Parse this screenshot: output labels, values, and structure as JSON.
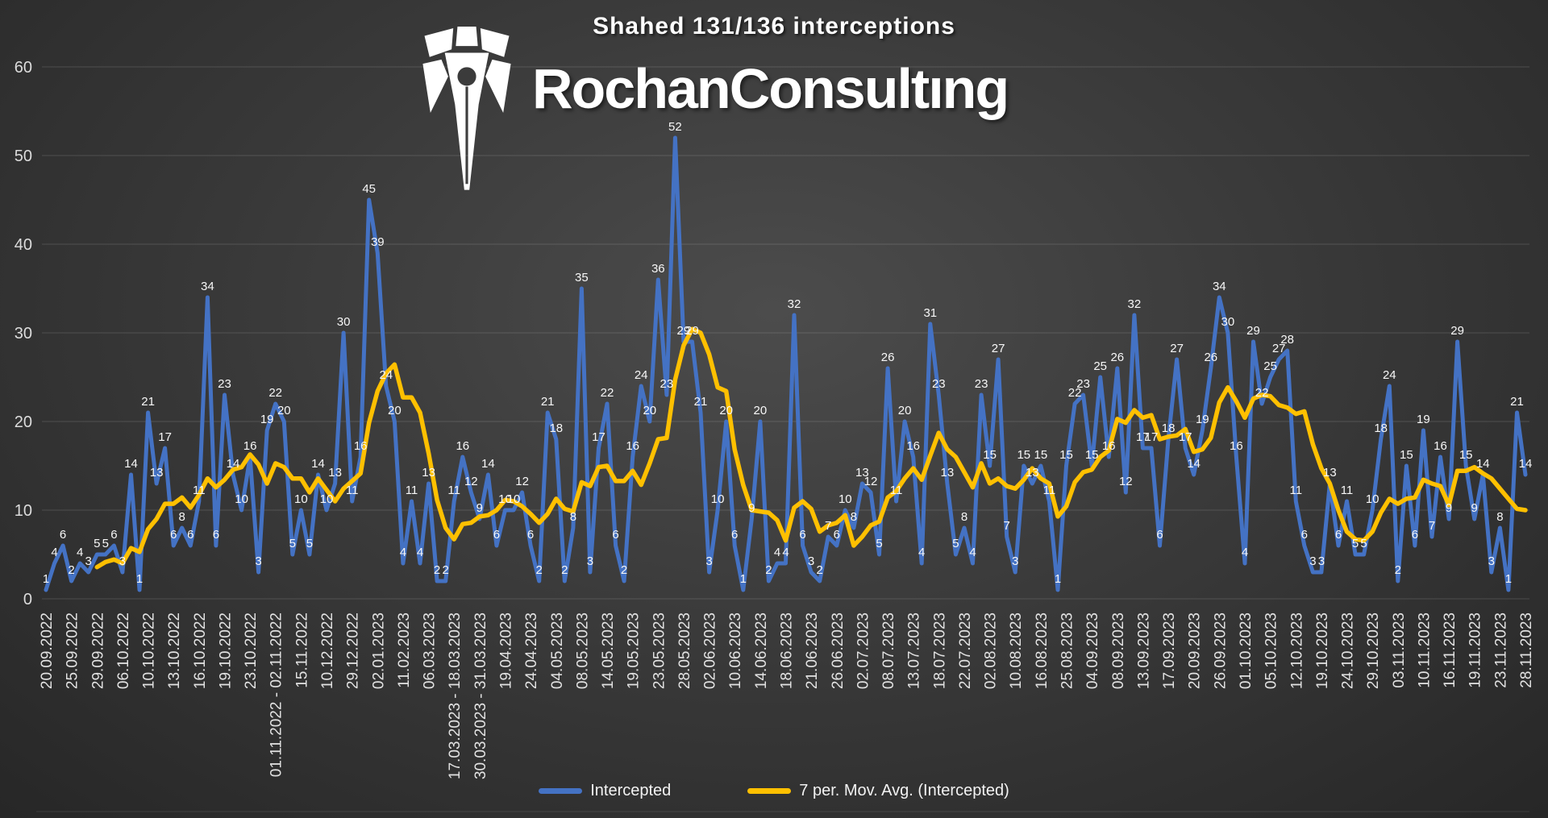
{
  "title": "Shahed 131/136 interceptions",
  "logo": {
    "icon": "pen-nib-icon",
    "brand": "RochanConsultıng"
  },
  "legend": {
    "position": "bottom"
  },
  "chart_data": {
    "type": "line",
    "title": "Shahed 131/136 interceptions",
    "xlabel": "",
    "ylabel": "",
    "ylim": [
      0,
      65
    ],
    "yticks": [
      0,
      10,
      20,
      30,
      40,
      50,
      60
    ],
    "grid": true,
    "legend_position": "bottom",
    "x_label_interval": 3,
    "x_labels": [
      "20.09.2022",
      "25.09.2022",
      "29.09.2022",
      "06.10.2022",
      "10.10.2022",
      "13.10.2022",
      "16.10.2022",
      "19.10.2022",
      "23.10.2022",
      "01.11.2022 - 02.11.2022",
      "15.11.2022",
      "10.12.2022",
      "29.12.2022",
      "02.01.2023",
      "11.02.2023",
      "06.03.2023",
      "17.03.2023 - 18.03.2023",
      "30.03.2023 - 31.03.2023",
      "19.04.2023",
      "24.04.2023",
      "04.05.2023",
      "08.05.2023",
      "14.05.2023",
      "19.05.2023",
      "23.05.2023",
      "28.05.2023",
      "02.06.2023",
      "10.06.2023",
      "14.06.2023",
      "18.06.2023",
      "21.06.2023",
      "26.06.2023",
      "02.07.2023",
      "08.07.2023",
      "13.07.2023",
      "18.07.2023",
      "22.07.2023",
      "02.08.2023",
      "10.08.2023",
      "16.08.2023",
      "25.08.2023",
      "04.09.2023",
      "08.09.2023",
      "13.09.2023",
      "17.09.2023",
      "20.09.2023",
      "26.09.2023",
      "01.10.2023",
      "05.10.2023",
      "12.10.2023",
      "19.10.2023",
      "24.10.2023",
      "29.10.2023",
      "03.11.2023",
      "10.11.2023",
      "16.11.2023",
      "19.11.2023",
      "23.11.2023",
      "28.11.2023"
    ],
    "series": [
      {
        "name": "Intercepted",
        "color": "#4472C4",
        "data_labels": true,
        "values": [
          1,
          4,
          6,
          2,
          4,
          3,
          5,
          5,
          6,
          3,
          14,
          1,
          21,
          13,
          17,
          6,
          8,
          6,
          11,
          34,
          6,
          23,
          14,
          10,
          16,
          3,
          19,
          22,
          20,
          5,
          10,
          5,
          14,
          10,
          13,
          30,
          11,
          16,
          45,
          39,
          24,
          20,
          4,
          11,
          4,
          13,
          2,
          2,
          11,
          16,
          12,
          9,
          14,
          6,
          10,
          10,
          12,
          6,
          2,
          21,
          18,
          2,
          8,
          35,
          3,
          17,
          22,
          6,
          2,
          16,
          24,
          20,
          36,
          23,
          52,
          29,
          29,
          21,
          3,
          10,
          20,
          6,
          1,
          9,
          20,
          2,
          4,
          4,
          32,
          6,
          3,
          2,
          7,
          6,
          10,
          8,
          13,
          12,
          5,
          26,
          11,
          20,
          16,
          4,
          31,
          23,
          13,
          5,
          8,
          4,
          23,
          15,
          27,
          7,
          3,
          15,
          13,
          15,
          11,
          1,
          15,
          22,
          23,
          15,
          25,
          16,
          26,
          12,
          32,
          17,
          17,
          6,
          18,
          27,
          17,
          14,
          19,
          26,
          34,
          30,
          16,
          4,
          29,
          22,
          25,
          27,
          28,
          11,
          6,
          3,
          3,
          13,
          6,
          11,
          5,
          5,
          10,
          18,
          24,
          2,
          15,
          6,
          19,
          7,
          16,
          9,
          29,
          15,
          9,
          14,
          3,
          8,
          1,
          21,
          14
        ]
      },
      {
        "name": "7 per. Mov. Avg. (Intercepted)",
        "color": "#FFC000",
        "data_labels": false,
        "derived": "trailing 7-point moving average of Intercepted",
        "period": 7
      }
    ]
  }
}
